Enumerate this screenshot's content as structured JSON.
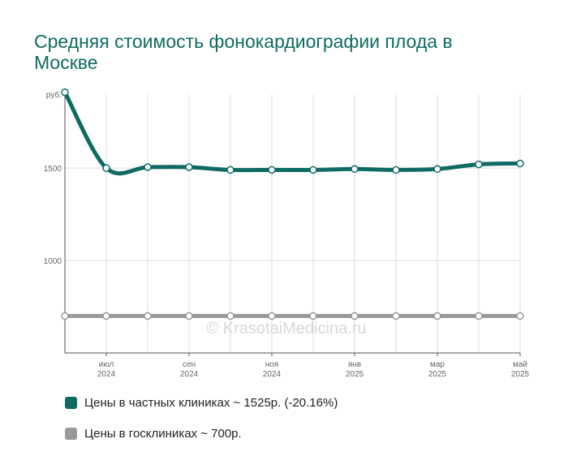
{
  "title": "Средняя стоимость фонокардиографии плода в Москве",
  "watermark": "© KrasotaiMedicina.ru",
  "colors": {
    "private": "#0e6b63",
    "public": "#999999",
    "grid": "#dddddd",
    "text": "#666666"
  },
  "legend": [
    {
      "label": "Цены в частных клиниках ~ 1525р. (-20.16%)"
    },
    {
      "label": "Цены в госклиниках ~ 700р."
    }
  ],
  "chart_data": {
    "type": "line",
    "ylabel": "руб.",
    "ylim": [
      500,
      1900
    ],
    "yticks": [
      1000,
      1500
    ],
    "x": [
      "2024-06",
      "2024-07",
      "2024-08",
      "2024-09",
      "2024-10",
      "2024-11",
      "2024-12",
      "2025-01",
      "2025-02",
      "2025-03",
      "2025-04",
      "2025-05"
    ],
    "xtick_labels": [
      {
        "at": 1,
        "month": "июл",
        "year": "2024"
      },
      {
        "at": 3,
        "month": "сен",
        "year": "2024"
      },
      {
        "at": 5,
        "month": "ноя",
        "year": "2024"
      },
      {
        "at": 7,
        "month": "янв",
        "year": "2025"
      },
      {
        "at": 9,
        "month": "мар",
        "year": "2025"
      },
      {
        "at": 11,
        "month": "май",
        "year": "2025"
      }
    ],
    "series": [
      {
        "name": "Цены в частных клиниках ~ 1525р. (-20.16%)",
        "color": "#0e6b63",
        "values": [
          1910,
          1500,
          1505,
          1505,
          1490,
          1490,
          1490,
          1495,
          1490,
          1495,
          1520,
          1525
        ]
      },
      {
        "name": "Цены в госклиниках ~ 700р.",
        "color": "#999999",
        "values": [
          700,
          700,
          700,
          700,
          700,
          700,
          700,
          700,
          700,
          700,
          700,
          700
        ]
      }
    ]
  }
}
